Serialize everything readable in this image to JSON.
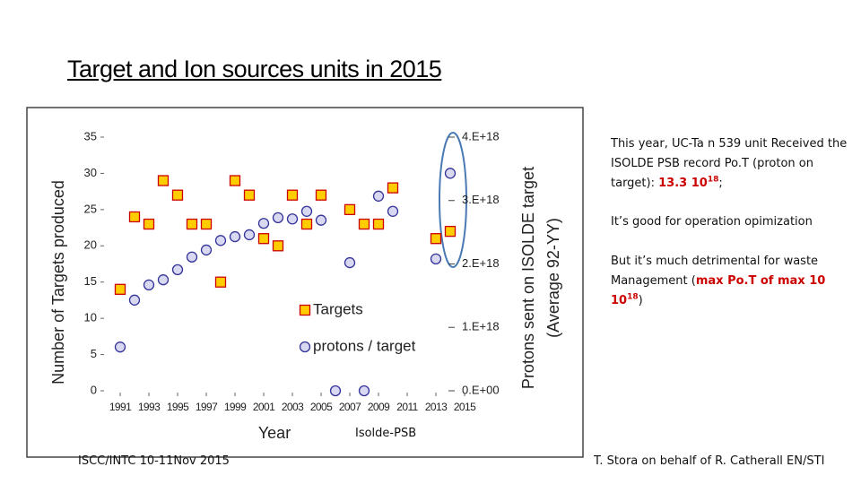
{
  "title": "Target and Ion sources units in 2015",
  "notes": {
    "p1": {
      "text": "This year, UC-Ta n 539 unit Received the ISOLDE PSB record Po.T (proton on target): ",
      "red": "13.3 10",
      "sup": "18",
      "tail": ";"
    },
    "p2": "It’s good for operation opimization",
    "p3": {
      "text": "But it’s much detrimental for waste Management (",
      "red": "max Po.T of max 10 10",
      "sup": "18",
      "tail": ")"
    }
  },
  "footer": {
    "left": "ISCC/INTC 10-11Nov 2015",
    "center": "Isolde-PSB",
    "right": "T. Stora on behalf of R. Catherall EN/STI"
  },
  "chart_data": {
    "type": "scatter",
    "xlabel": "Year",
    "ylabel": "Number of Targets produced",
    "y2label": [
      "Protons sent on ISOLDE target",
      "(Average 92-YY)"
    ],
    "xlim": [
      1990,
      2015
    ],
    "xticks": [
      1991,
      1993,
      1995,
      1997,
      1999,
      2001,
      2003,
      2005,
      2007,
      2009,
      2011,
      2013,
      2015
    ],
    "ylim": [
      0,
      35
    ],
    "yticks": [
      0,
      5,
      10,
      15,
      20,
      25,
      30,
      35
    ],
    "y2lim": [
      0,
      4e+18
    ],
    "y2ticks": [
      {
        "value": 0,
        "label": "0.E+00"
      },
      {
        "value": 1e+18,
        "label": "1.E+18"
      },
      {
        "value": 2e+18,
        "label": "2.E+18"
      },
      {
        "value": 3e+18,
        "label": "3.E+18"
      },
      {
        "value": 4e+18,
        "label": "4.E+18"
      }
    ],
    "series": [
      {
        "name": "Targets",
        "marker": "square",
        "color": "#ffcc00",
        "edge": "#cc0000",
        "x": [
          1991,
          1992,
          1993,
          1994,
          1995,
          1996,
          1997,
          1998,
          1999,
          2000,
          2001,
          2002,
          2003,
          2004,
          2005,
          2007,
          2008,
          2009,
          2010,
          2013,
          2014
        ],
        "values": [
          14,
          24,
          23,
          29,
          27,
          23,
          23,
          15,
          29,
          27,
          21,
          20,
          27,
          23,
          27,
          25,
          23,
          23,
          28,
          21,
          22
        ]
      },
      {
        "name": "protons / target",
        "marker": "circle",
        "axis": "y2",
        "color": "#d8d8f0",
        "edge": "#333399",
        "x": [
          1991,
          1992,
          1993,
          1994,
          1995,
          1996,
          1997,
          1998,
          1999,
          2000,
          2001,
          2002,
          2003,
          2004,
          2005,
          2006,
          2007,
          2008,
          2009,
          2010,
          2013,
          2014
        ],
        "values": [
          6.9e+17,
          1.43e+18,
          1.67e+18,
          1.75e+18,
          1.91e+18,
          2.11e+18,
          2.22e+18,
          2.37e+18,
          2.43e+18,
          2.46e+18,
          2.64e+18,
          2.73e+18,
          2.71e+18,
          2.83e+18,
          2.69e+18,
          0,
          2.02e+18,
          0,
          3.07e+18,
          2.83e+18,
          2.08e+18,
          3.43e+18
        ]
      }
    ]
  }
}
